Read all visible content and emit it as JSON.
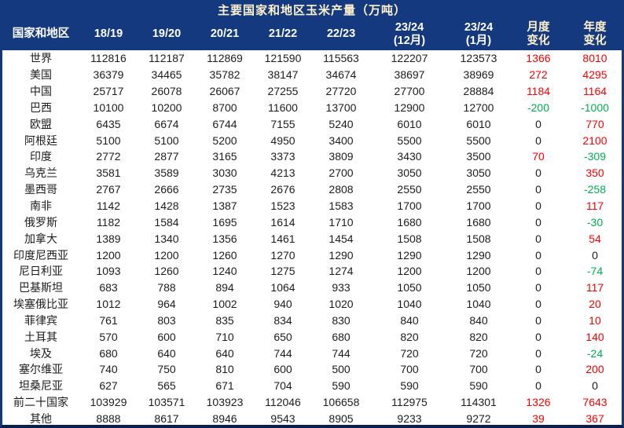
{
  "title": "主要国家和地区玉米产量（万吨）",
  "colors": {
    "header_bg": "#15397e",
    "title_text": "#fff2cc",
    "header_text": "#ffffff",
    "positive_change": "#ff0000",
    "negative_change": "#00b050",
    "body_text": "#1c1c1c"
  },
  "table": {
    "headers": [
      {
        "lines": [
          "国家和地区"
        ],
        "accent": false
      },
      {
        "lines": [
          "18/19"
        ],
        "accent": false
      },
      {
        "lines": [
          "19/20"
        ],
        "accent": false
      },
      {
        "lines": [
          "20/21"
        ],
        "accent": false
      },
      {
        "lines": [
          "21/22"
        ],
        "accent": false
      },
      {
        "lines": [
          "22/23"
        ],
        "accent": false
      },
      {
        "lines": [
          "23/24",
          "(12月)"
        ],
        "accent": false
      },
      {
        "lines": [
          "23/24",
          "(1月)"
        ],
        "accent": false
      },
      {
        "lines": [
          "月度",
          "变化"
        ],
        "accent": true
      },
      {
        "lines": [
          "年度",
          "变化"
        ],
        "accent": true
      }
    ],
    "rows": [
      {
        "name": "世界",
        "values": [
          112816,
          112187,
          112869,
          121590,
          115563,
          122207,
          123573
        ],
        "monthly": 1366,
        "yearly": 8010
      },
      {
        "name": "美国",
        "values": [
          36379,
          34465,
          35782,
          38147,
          34674,
          38697,
          38969
        ],
        "monthly": 272,
        "yearly": 4295
      },
      {
        "name": "中国",
        "values": [
          25717,
          26078,
          26067,
          27255,
          27720,
          27700,
          28884
        ],
        "monthly": 1184,
        "yearly": 1164
      },
      {
        "name": "巴西",
        "values": [
          10100,
          10200,
          8700,
          11600,
          13700,
          12900,
          12700
        ],
        "monthly": -200,
        "yearly": -1000
      },
      {
        "name": "欧盟",
        "values": [
          6435,
          6674,
          6744,
          7155,
          5240,
          6010,
          6010
        ],
        "monthly": 0,
        "yearly": 770
      },
      {
        "name": "阿根廷",
        "values": [
          5100,
          5100,
          5200,
          4950,
          3400,
          5500,
          5500
        ],
        "monthly": 0,
        "yearly": 2100
      },
      {
        "name": "印度",
        "values": [
          2772,
          2877,
          3165,
          3373,
          3809,
          3430,
          3500
        ],
        "monthly": 70,
        "yearly": -309
      },
      {
        "name": "乌克兰",
        "values": [
          3581,
          3589,
          3030,
          4213,
          2700,
          3050,
          3050
        ],
        "monthly": 0,
        "yearly": 350
      },
      {
        "name": "墨西哥",
        "values": [
          2767,
          2666,
          2735,
          2676,
          2808,
          2550,
          2550
        ],
        "monthly": 0,
        "yearly": -258
      },
      {
        "name": "南非",
        "values": [
          1142,
          1428,
          1387,
          1523,
          1583,
          1700,
          1700
        ],
        "monthly": 0,
        "yearly": 117
      },
      {
        "name": "俄罗斯",
        "values": [
          1182,
          1584,
          1695,
          1614,
          1710,
          1680,
          1680
        ],
        "monthly": 0,
        "yearly": -30
      },
      {
        "name": "加拿大",
        "values": [
          1389,
          1340,
          1356,
          1461,
          1454,
          1508,
          1508
        ],
        "monthly": 0,
        "yearly": 54
      },
      {
        "name": "印度尼西亚",
        "values": [
          1200,
          1200,
          1260,
          1270,
          1290,
          1290,
          1290
        ],
        "monthly": 0,
        "yearly": 0
      },
      {
        "name": "尼日利亚",
        "values": [
          1093,
          1260,
          1240,
          1275,
          1274,
          1200,
          1200
        ],
        "monthly": 0,
        "yearly": -74
      },
      {
        "name": "巴基斯坦",
        "values": [
          683,
          788,
          894,
          1064,
          933,
          1050,
          1050
        ],
        "monthly": 0,
        "yearly": 117
      },
      {
        "name": "埃塞俄比亚",
        "values": [
          1012,
          964,
          1002,
          940,
          1020,
          1040,
          1040
        ],
        "monthly": 0,
        "yearly": 20
      },
      {
        "name": "菲律宾",
        "values": [
          761,
          803,
          835,
          834,
          830,
          840,
          840
        ],
        "monthly": 0,
        "yearly": 10
      },
      {
        "name": "土耳其",
        "values": [
          570,
          600,
          710,
          650,
          680,
          820,
          820
        ],
        "monthly": 0,
        "yearly": 140
      },
      {
        "name": "埃及",
        "values": [
          680,
          640,
          640,
          744,
          744,
          720,
          720
        ],
        "monthly": 0,
        "yearly": -24
      },
      {
        "name": "塞尔维亚",
        "values": [
          740,
          750,
          810,
          600,
          500,
          700,
          700
        ],
        "monthly": 0,
        "yearly": 200
      },
      {
        "name": "坦桑尼亚",
        "values": [
          627,
          565,
          671,
          704,
          590,
          590,
          590
        ],
        "monthly": 0,
        "yearly": 0
      },
      {
        "name": "前二十国家",
        "values": [
          103929,
          103571,
          103923,
          112046,
          106658,
          112975,
          114301
        ],
        "monthly": 1326,
        "yearly": 7643
      },
      {
        "name": "其他",
        "values": [
          8888,
          8617,
          8946,
          9543,
          8905,
          9233,
          9272
        ],
        "monthly": 39,
        "yearly": 367
      }
    ]
  }
}
